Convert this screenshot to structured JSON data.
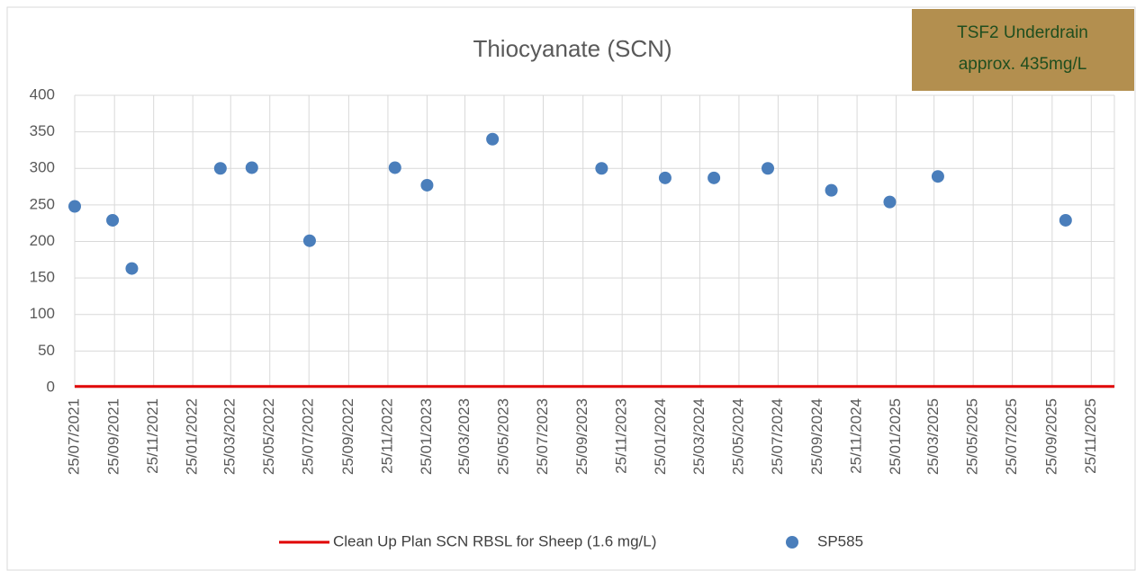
{
  "chart_data": {
    "type": "scatter",
    "title": "Thiocyanate (SCN)",
    "annotation": [
      "TSF2 Underdrain",
      "approx. 435mg/L"
    ],
    "xlim": [
      "25/07/2021",
      "31/12/2025"
    ],
    "xticks": [
      "25/07/2021",
      "25/09/2021",
      "25/11/2021",
      "25/01/2022",
      "25/03/2022",
      "25/05/2022",
      "25/07/2022",
      "25/09/2022",
      "25/11/2022",
      "25/01/2023",
      "25/03/2023",
      "25/05/2023",
      "25/07/2023",
      "25/09/2023",
      "25/11/2023",
      "25/01/2024",
      "25/03/2024",
      "25/05/2024",
      "25/07/2024",
      "25/09/2024",
      "25/11/2024",
      "25/01/2025",
      "25/03/2025",
      "25/05/2025",
      "25/07/2025",
      "25/09/2025",
      "25/11/2025"
    ],
    "ylim": [
      0,
      400
    ],
    "yticks": [
      0,
      50,
      100,
      150,
      200,
      250,
      300,
      350,
      400
    ],
    "grid": true,
    "reference_line": {
      "name": "Clean Up Plan SCN RBSL for Sheep (1.6 mg/L)",
      "value": 1.6,
      "color": "#e00000"
    },
    "series": [
      {
        "name": "SP585",
        "color": "#4a7ebb",
        "x": [
          "25/07/2021",
          "22/09/2021",
          "22/10/2021",
          "09/03/2022",
          "27/04/2022",
          "26/07/2022",
          "06/12/2022",
          "25/01/2023",
          "07/05/2023",
          "24/10/2023",
          "31/01/2024",
          "16/04/2024",
          "09/07/2024",
          "16/10/2024",
          "15/01/2025",
          "31/03/2025",
          "16/10/2025"
        ],
        "values": [
          248,
          229,
          163,
          300,
          301,
          201,
          301,
          277,
          340,
          300,
          287,
          287,
          300,
          270,
          254,
          289,
          229
        ]
      }
    ],
    "legend": "bottom"
  }
}
